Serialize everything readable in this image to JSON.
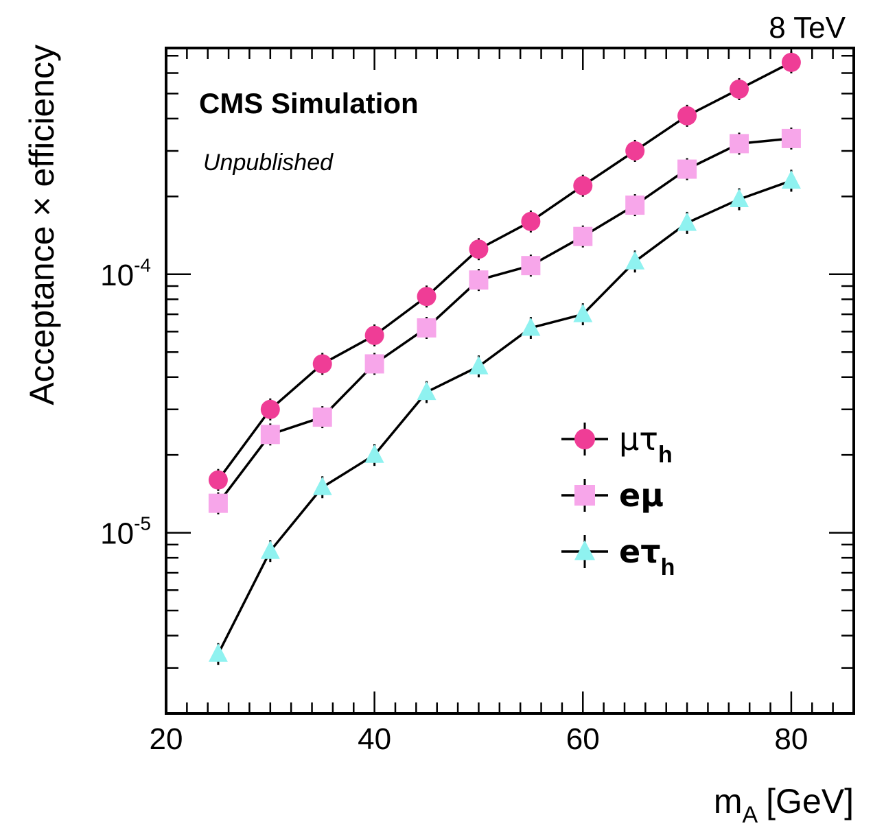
{
  "chart_data": {
    "type": "line",
    "energy_label": "8 TeV",
    "label_main": "CMS Simulation",
    "label_sub": "Unpublished",
    "xlabel_main": "m",
    "xlabel_sub": "A",
    "xlabel_unit": "[GeV]",
    "ylabel": "Acceptance × efficiency",
    "xlim": [
      20,
      86
    ],
    "ylim": [
      2e-06,
      0.00075
    ],
    "yscale": "log",
    "xticks": [
      20,
      40,
      60,
      80
    ],
    "yticks": [
      {
        "value": 1e-05,
        "base": "10",
        "exp": "-5"
      },
      {
        "value": 0.0001,
        "base": "10",
        "exp": "-4"
      }
    ],
    "x": [
      25,
      30,
      35,
      40,
      45,
      50,
      55,
      60,
      65,
      70,
      75,
      80
    ],
    "series": [
      {
        "name": "μτ",
        "name_sub": "h",
        "color": "#ef3d96",
        "marker": "circle",
        "bold": false,
        "values": [
          1.6e-05,
          3e-05,
          4.5e-05,
          5.8e-05,
          8.2e-05,
          0.000125,
          0.00016,
          0.00022,
          0.0003,
          0.00041,
          0.00052,
          0.00066
        ]
      },
      {
        "name": "eμ",
        "name_sub": "",
        "color": "#f7a6ea",
        "marker": "square",
        "bold": true,
        "values": [
          1.3e-05,
          2.4e-05,
          2.8e-05,
          4.5e-05,
          6.2e-05,
          9.5e-05,
          0.000108,
          0.00014,
          0.000185,
          0.000255,
          0.00032,
          0.000335
        ]
      },
      {
        "name": "eτ",
        "name_sub": "h",
        "color": "#8ff2f0",
        "marker": "triangle",
        "bold": true,
        "values": [
          3.4e-06,
          8.5e-06,
          1.5e-05,
          2e-05,
          3.5e-05,
          4.4e-05,
          6.2e-05,
          7e-05,
          0.000112,
          0.000158,
          0.000195,
          0.00023
        ]
      }
    ]
  }
}
